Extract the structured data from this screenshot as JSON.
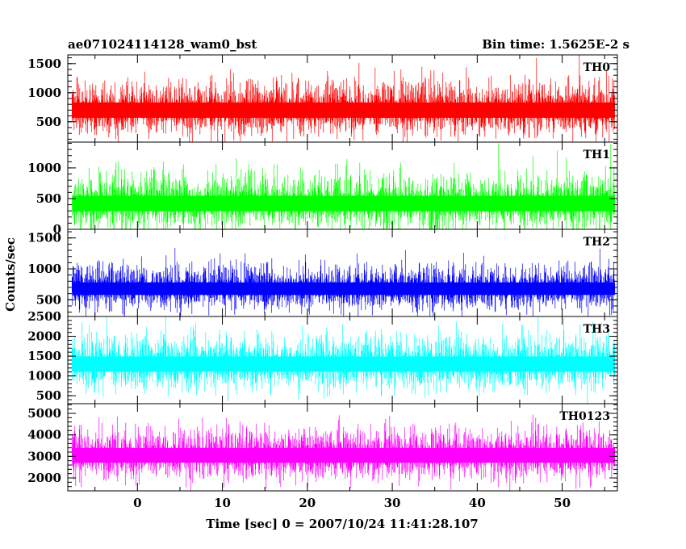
{
  "header": {
    "title": "ae071024114128_wam0_bst",
    "bin_time": "Bin time: 1.5625E-2 s"
  },
  "chart_data": {
    "type": "line",
    "title": "ae071024114128_wam0_bst",
    "xlabel": "Time [sec] 0 = 2007/10/24 11:41:28.107",
    "ylabel": "Counts/sec",
    "xlim": [
      -8.2,
      56.5
    ],
    "x_range_data": [
      -7.7,
      56.2
    ],
    "x_ticks": [
      0,
      10,
      20,
      30,
      40,
      50
    ],
    "grid": false,
    "legend": "none",
    "panels": [
      {
        "label": "TH0",
        "color": "#ff0000",
        "ylim": [
          150,
          1650
        ],
        "y_ticks": [
          500,
          1000,
          1500
        ],
        "mean": 700,
        "typical_range": [
          200,
          1300
        ],
        "peak": 1650
      },
      {
        "label": "TH1",
        "color": "#00ff00",
        "ylim": [
          0,
          1420
        ],
        "y_ticks": [
          0,
          500,
          1000
        ],
        "mean": 420,
        "typical_range": [
          50,
          1100
        ],
        "peak": 1420
      },
      {
        "label": "TH2",
        "color": "#0000ff",
        "ylim": [
          230,
          1640
        ],
        "y_ticks": [
          500,
          1000,
          1500
        ],
        "mean": 680,
        "typical_range": [
          350,
          1200
        ],
        "peak": 1640
      },
      {
        "label": "TH3",
        "color": "#00ffff",
        "ylim": [
          300,
          2500
        ],
        "y_ticks": [
          500,
          1000,
          1500,
          2000,
          2500
        ],
        "mean": 1300,
        "typical_range": [
          600,
          2200
        ],
        "peak": 2500
      },
      {
        "label": "TH0123",
        "color": "#ff00ff",
        "ylim": [
          1400,
          5450
        ],
        "y_ticks": [
          2000,
          3000,
          4000,
          5000
        ],
        "mean": 3050,
        "typical_range": [
          1800,
          4600
        ],
        "peak": 5400
      }
    ]
  }
}
